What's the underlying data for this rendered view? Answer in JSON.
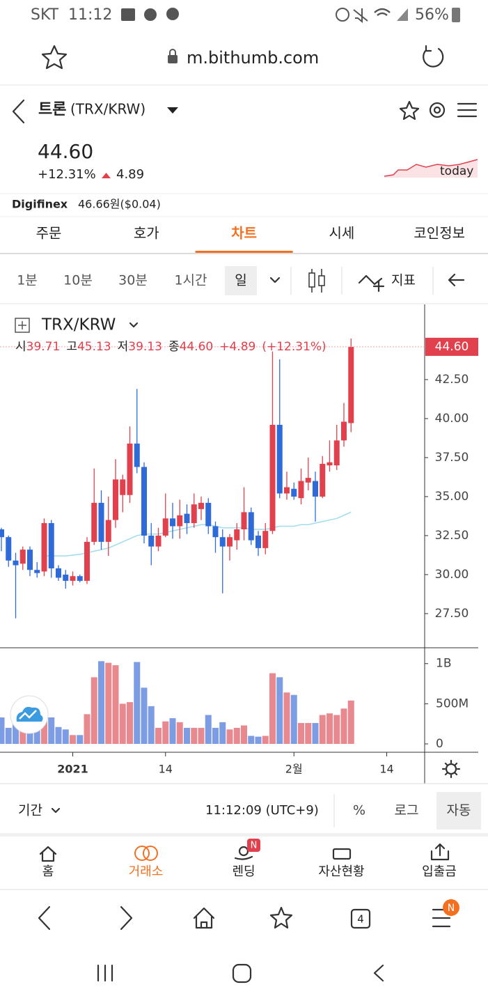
{
  "status_bar": {
    "carrier": "SKT",
    "time": "11:12",
    "battery": "56%"
  },
  "browser": {
    "url": "m.bithumb.com",
    "tab_count": "4",
    "menu_badge": "N"
  },
  "market": {
    "name": "트론",
    "pair": "(TRX/KRW)",
    "price": "44.60",
    "change_pct": "+12.31%",
    "change": "4.89",
    "sparkline_label": "today",
    "ref_exchange": "Digifinex",
    "ref_price": "46.66원($0.04)"
  },
  "tabs": [
    "주문",
    "호가",
    "차트",
    "시세",
    "코인정보"
  ],
  "active_tab": 2,
  "intervals": [
    "1분",
    "10분",
    "30분",
    "1시간",
    "일"
  ],
  "active_interval": 4,
  "indicator_button": "지표",
  "chart_data": {
    "type": "candlestick",
    "title": "TRX/KRW",
    "legend": {
      "open_label": "시",
      "open": "39.71",
      "high_label": "고",
      "high": "45.13",
      "low_label": "저",
      "low": "39.13",
      "close_label": "종",
      "close": "44.60",
      "change": "+4.89",
      "change_pct": "(+12.31%)"
    },
    "categories": [
      null,
      null,
      null,
      null,
      null,
      null,
      null,
      null,
      null,
      null,
      "2021",
      null,
      null,
      null,
      null,
      null,
      null,
      null,
      null,
      null,
      null,
      null,
      null,
      "14",
      null,
      null,
      null,
      null,
      null,
      null,
      null,
      null,
      null,
      null,
      null,
      null,
      null,
      null,
      null,
      null,
      null,
      "2월",
      null,
      null,
      null,
      null,
      null,
      null,
      null,
      null,
      null,
      null,
      null,
      null,
      "14"
    ],
    "open": [
      32.9,
      32.4,
      30.9,
      30.7,
      31.6,
      30.3,
      30.2,
      33.3,
      30.4,
      30.0,
      29.6,
      29.9,
      29.6,
      32.1,
      34.6,
      32.1,
      33.5,
      35.1,
      35.1,
      38.4,
      36.9,
      32.5,
      31.8,
      32.5,
      33.6,
      33.1,
      33.9,
      33.3,
      34.2,
      34.6,
      33.1,
      32.4,
      31.8,
      32.2,
      32.9,
      34.0,
      32.5,
      31.7,
      32.8,
      39.6,
      35.2,
      35.5,
      34.9,
      35.9,
      36.0,
      35.0,
      37.0,
      37.0,
      38.6,
      39.71,
      null,
      null,
      null,
      null,
      null
    ],
    "high": [
      33.0,
      32.5,
      31.4,
      31.8,
      31.8,
      30.8,
      33.6,
      33.5,
      30.6,
      30.3,
      30.2,
      30.0,
      32.4,
      36.8,
      35.4,
      35.0,
      37.4,
      36.4,
      39.5,
      41.9,
      37.2,
      33.3,
      33.0,
      35.2,
      34.6,
      34.8,
      34.5,
      35.2,
      35.0,
      34.9,
      33.4,
      32.9,
      32.6,
      33.3,
      35.6,
      34.3,
      32.8,
      33.3,
      44.3,
      43.8,
      36.6,
      35.9,
      36.8,
      37.5,
      36.6,
      37.6,
      38.6,
      39.6,
      41.0,
      45.13,
      null,
      null,
      null,
      null,
      null
    ],
    "low": [
      31.5,
      30.5,
      27.2,
      30.3,
      29.9,
      29.8,
      29.9,
      29.8,
      29.6,
      29.1,
      29.3,
      29.5,
      29.4,
      31.9,
      31.6,
      31.2,
      33.0,
      34.0,
      34.6,
      36.5,
      32.0,
      30.6,
      31.5,
      32.4,
      32.3,
      32.3,
      32.6,
      33.0,
      33.5,
      32.6,
      31.4,
      28.8,
      30.9,
      31.6,
      32.2,
      31.9,
      31.2,
      31.3,
      32.6,
      34.9,
      34.8,
      34.8,
      34.5,
      35.4,
      33.4,
      34.9,
      36.6,
      36.7,
      38.2,
      39.13,
      null,
      null,
      null,
      null,
      null
    ],
    "close": [
      32.4,
      30.9,
      30.6,
      31.6,
      30.3,
      30.1,
      33.3,
      30.4,
      29.8,
      29.6,
      29.9,
      29.6,
      32.1,
      34.6,
      32.1,
      33.5,
      36.1,
      36.1,
      38.4,
      36.9,
      32.5,
      31.8,
      32.5,
      33.6,
      33.1,
      33.8,
      33.3,
      34.5,
      34.6,
      33.1,
      32.4,
      31.8,
      32.4,
      32.9,
      34.0,
      32.2,
      31.7,
      32.8,
      39.6,
      35.2,
      35.6,
      35.0,
      36.0,
      36.2,
      35.0,
      37.1,
      37.2,
      38.6,
      39.8,
      44.6,
      null,
      null,
      null,
      null,
      null
    ],
    "ma": [
      null,
      null,
      null,
      null,
      null,
      null,
      31.2,
      31.2,
      31.2,
      31.2,
      31.25,
      31.3,
      31.4,
      31.5,
      31.6,
      31.7,
      31.9,
      32.1,
      32.3,
      32.5,
      32.6,
      32.6,
      32.6,
      32.7,
      32.8,
      32.9,
      33.0,
      33.1,
      33.2,
      33.2,
      33.1,
      33.0,
      33.0,
      33.0,
      33.0,
      32.9,
      32.9,
      32.9,
      33.0,
      33.1,
      33.1,
      33.1,
      33.2,
      33.2,
      33.3,
      33.4,
      33.5,
      33.6,
      33.8,
      34.0,
      null,
      null,
      null,
      null,
      null
    ],
    "volume": [
      330000000,
      200000000,
      240000000,
      290000000,
      250000000,
      280000000,
      300000000,
      330000000,
      210000000,
      180000000,
      110000000,
      110000000,
      370000000,
      830000000,
      1030000000,
      1010000000,
      980000000,
      500000000,
      520000000,
      1020000000,
      700000000,
      470000000,
      200000000,
      280000000,
      320000000,
      270000000,
      200000000,
      200000000,
      200000000,
      360000000,
      200000000,
      270000000,
      180000000,
      200000000,
      230000000,
      100000000,
      90000000,
      100000000,
      880000000,
      830000000,
      640000000,
      610000000,
      260000000,
      260000000,
      260000000,
      360000000,
      380000000,
      360000000,
      440000000,
      540000000,
      null,
      null,
      null,
      null,
      null
    ],
    "ylim": [
      25.31,
      47.32
    ],
    "yticks": [
      {
        "value": 27.5,
        "label": "27.50"
      },
      {
        "value": 30,
        "label": "30.00"
      },
      {
        "value": 32.5,
        "label": "32.50"
      },
      {
        "value": 35,
        "label": "35.00"
      },
      {
        "value": 37.5,
        "label": "37.50"
      },
      {
        "value": 40,
        "label": "40.00"
      },
      {
        "value": 42.5,
        "label": "42.50"
      }
    ],
    "last_price": {
      "value": 44.6,
      "label": "44.60"
    },
    "volume_ylim": [
      0,
      1180000000
    ],
    "volume_yticks": [
      0,
      {
        "value": 500000000,
        "label": "500M"
      },
      {
        "value": 1000000000,
        "label": "1B"
      }
    ],
    "up_color": "#e0414c",
    "down_color": "#2f6ad9",
    "volume_up_color": "#e88990",
    "volume_down_color": "#7c9ce3",
    "ma_color": "#9fdcec"
  },
  "footer_bar": {
    "period": "기간",
    "clock": "11:12:09 (UTC+9)",
    "buttons": [
      "%",
      "로그",
      "자동"
    ]
  },
  "bottom_nav": [
    {
      "label": "홈"
    },
    {
      "label": "거래소"
    },
    {
      "label": "렌딩",
      "badge": "N"
    },
    {
      "label": "자산현황"
    },
    {
      "label": "입출금"
    }
  ],
  "active_nav": 1
}
